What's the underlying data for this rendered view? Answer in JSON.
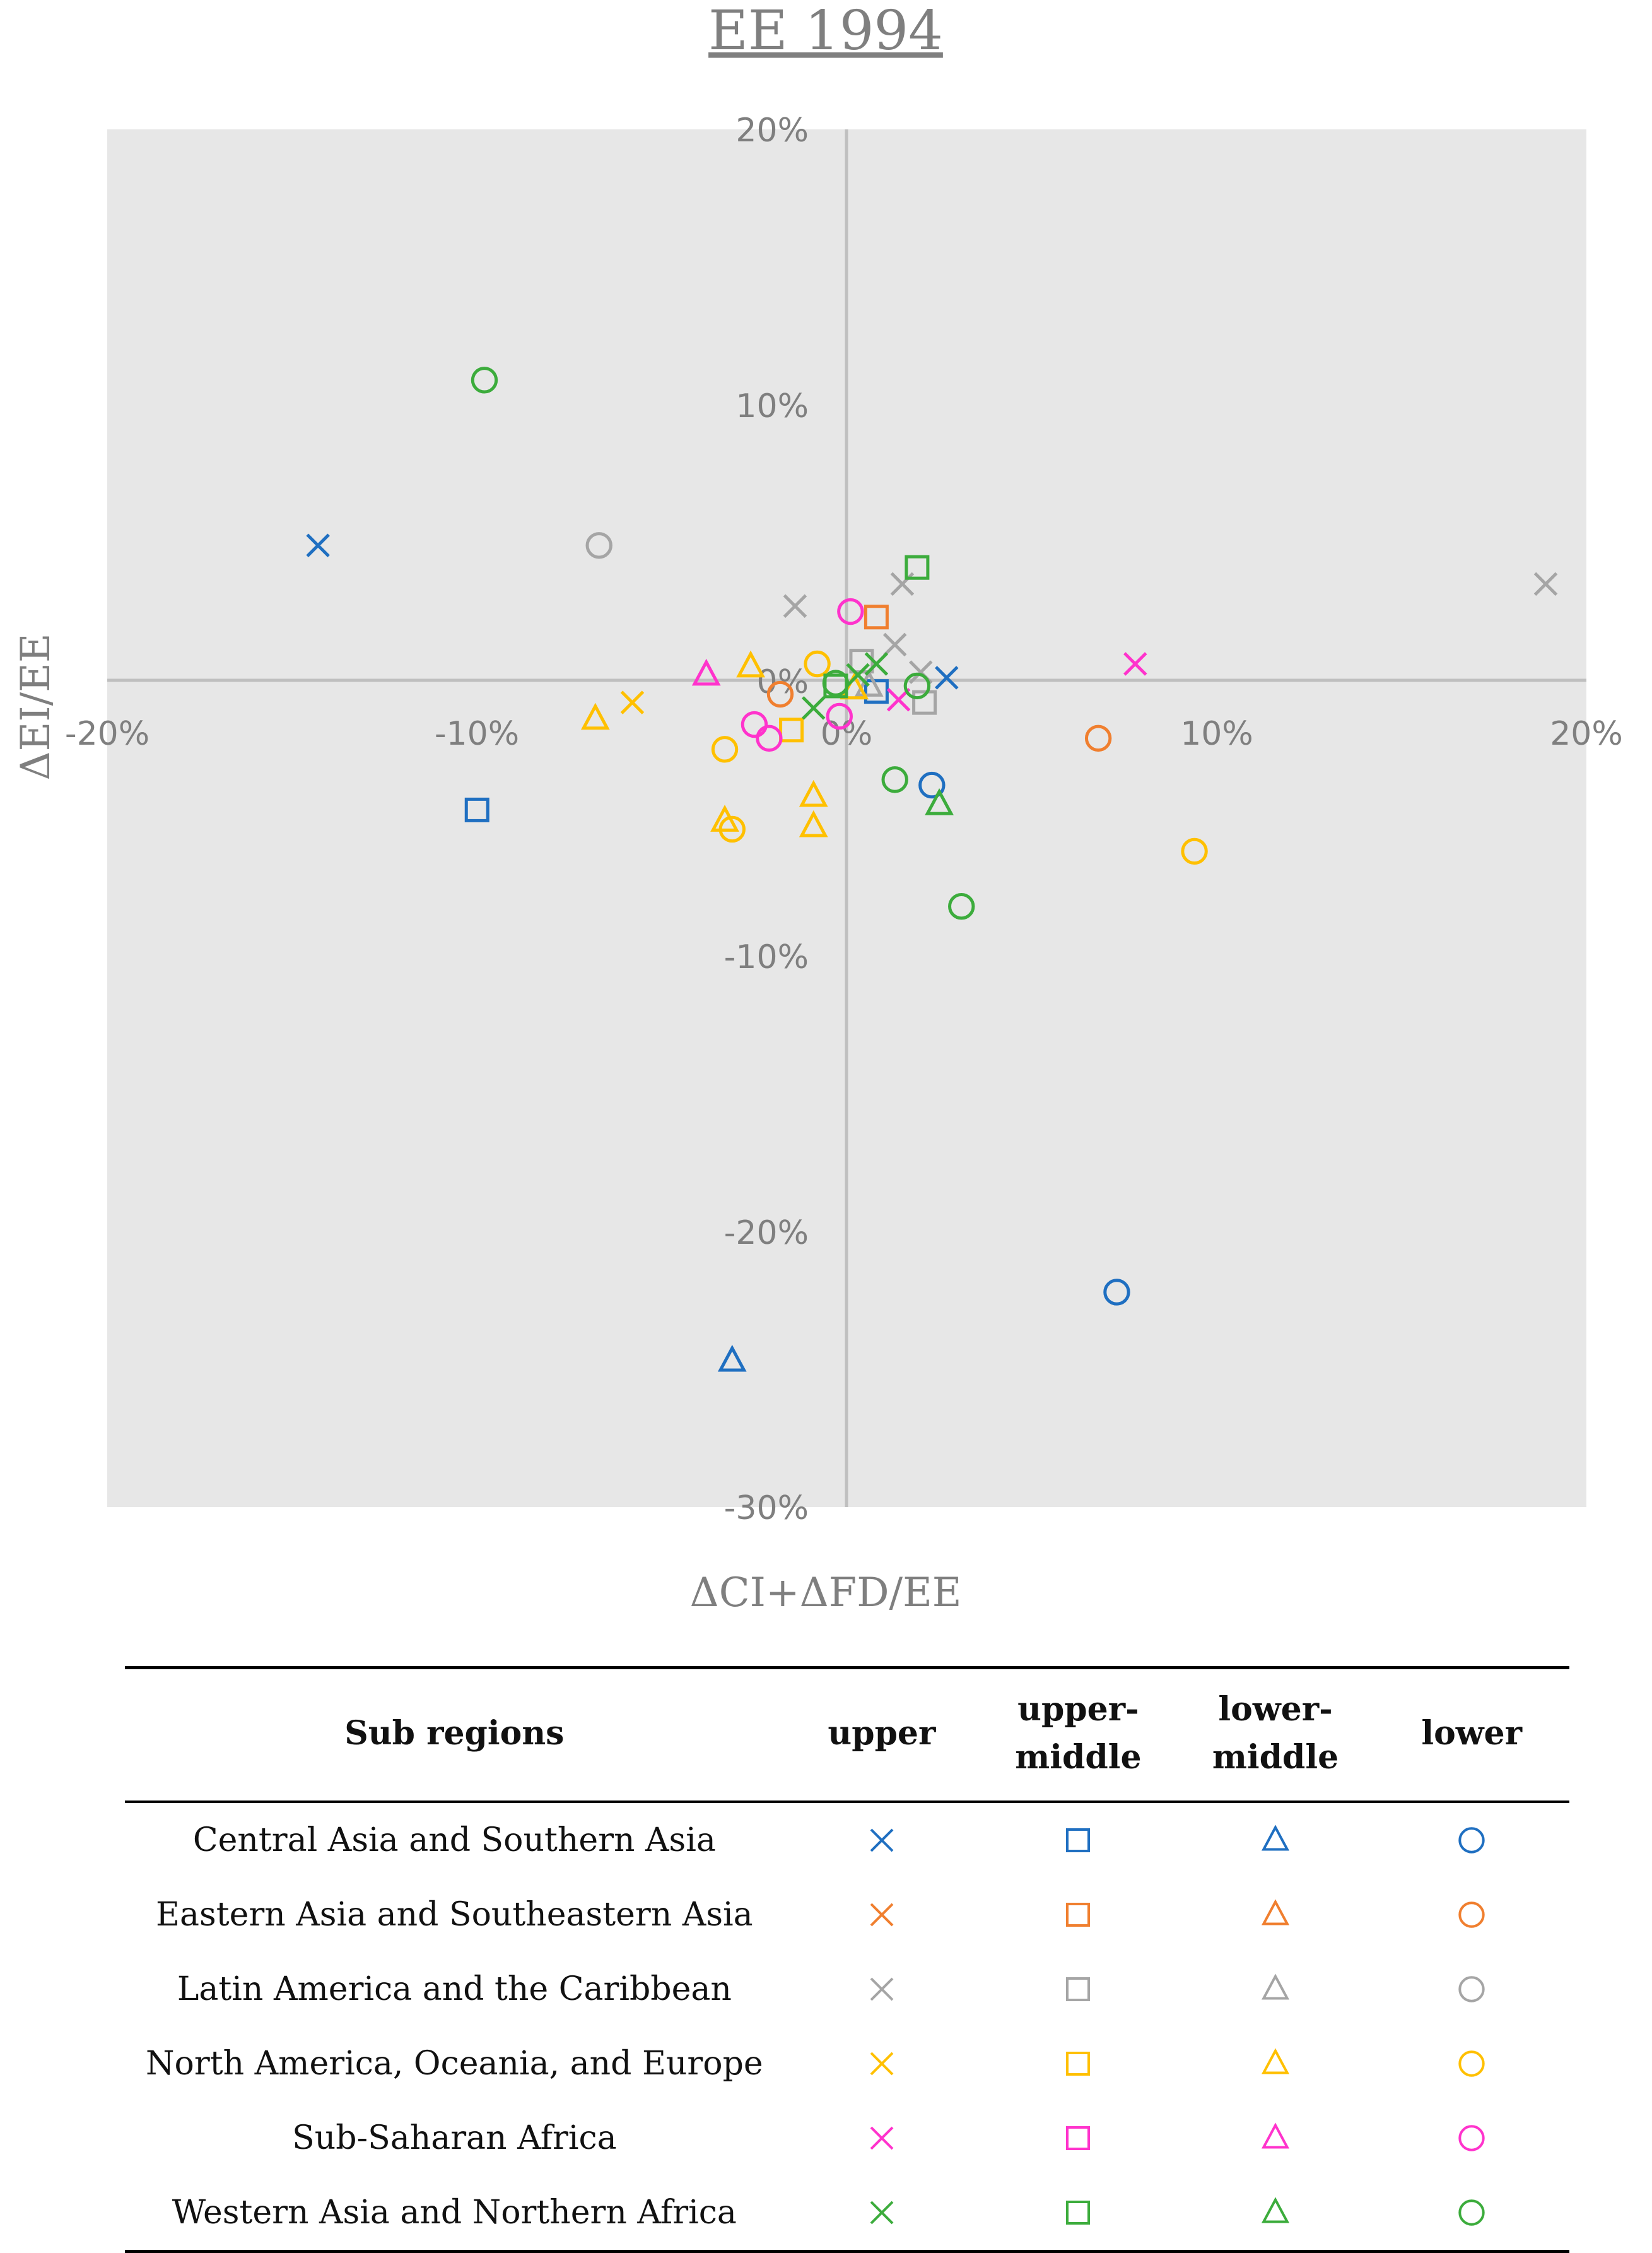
{
  "chart_data": {
    "type": "scatter",
    "title": "EE 1994",
    "xlabel": "ΔCI+ΔFD/EE",
    "ylabel": "ΔEI/EE",
    "xlim": [
      -20,
      20
    ],
    "ylim": [
      -30,
      20
    ],
    "x_ticks": [
      "-20%",
      "-10%",
      "0%",
      "10%",
      "20%"
    ],
    "y_ticks": [
      "20%",
      "10%",
      "0%",
      "-10%",
      "-20%",
      "-30%"
    ],
    "grid": false,
    "marker_types": [
      "upper",
      "upper-middle",
      "lower-middle",
      "lower"
    ],
    "series": [
      {
        "name": "Central Asia and Southern Asia",
        "color": "#1f6fc1",
        "points": [
          {
            "x": -14.3,
            "y": 4.9,
            "m": "upper"
          },
          {
            "x": 2.7,
            "y": 0.1,
            "m": "upper"
          },
          {
            "x": -10.0,
            "y": -4.7,
            "m": "upper-middle"
          },
          {
            "x": 0.8,
            "y": -0.4,
            "m": "upper-middle"
          },
          {
            "x": -3.1,
            "y": -24.7,
            "m": "lower-middle"
          },
          {
            "x": 7.3,
            "y": -22.2,
            "m": "lower"
          },
          {
            "x": 2.3,
            "y": -3.8,
            "m": "lower"
          }
        ]
      },
      {
        "name": "Eastern Asia and Southeastern Asia",
        "color": "#f07f2f",
        "points": [
          {
            "x": 0.8,
            "y": 2.3,
            "m": "upper-middle"
          },
          {
            "x": -1.8,
            "y": -0.5,
            "m": "lower"
          },
          {
            "x": 6.8,
            "y": -2.1,
            "m": "lower"
          }
        ]
      },
      {
        "name": "Latin America and the Caribbean",
        "color": "#a5a5a5",
        "points": [
          {
            "x": 18.9,
            "y": 3.5,
            "m": "upper"
          },
          {
            "x": 1.5,
            "y": 3.5,
            "m": "upper"
          },
          {
            "x": -1.4,
            "y": 2.7,
            "m": "upper"
          },
          {
            "x": 1.3,
            "y": 1.3,
            "m": "upper"
          },
          {
            "x": 2.0,
            "y": 0.3,
            "m": "upper"
          },
          {
            "x": 2.1,
            "y": -0.8,
            "m": "upper-middle"
          },
          {
            "x": 0.4,
            "y": 0.7,
            "m": "upper-middle"
          },
          {
            "x": 0.6,
            "y": -0.2,
            "m": "lower-middle"
          },
          {
            "x": -6.7,
            "y": 4.9,
            "m": "lower"
          }
        ]
      },
      {
        "name": "North America, Oceania, and Europe",
        "color": "#ffc000",
        "points": [
          {
            "x": -5.8,
            "y": -0.8,
            "m": "upper"
          },
          {
            "x": -1.5,
            "y": -1.8,
            "m": "upper-middle"
          },
          {
            "x": -6.8,
            "y": -1.4,
            "m": "lower-middle"
          },
          {
            "x": -2.6,
            "y": 0.5,
            "m": "lower-middle"
          },
          {
            "x": -0.9,
            "y": -4.2,
            "m": "lower-middle"
          },
          {
            "x": -0.9,
            "y": -5.3,
            "m": "lower-middle"
          },
          {
            "x": -3.3,
            "y": -5.1,
            "m": "lower-middle"
          },
          {
            "x": 0.2,
            "y": -0.3,
            "m": "lower-middle"
          },
          {
            "x": -0.8,
            "y": 0.6,
            "m": "lower"
          },
          {
            "x": -3.3,
            "y": -2.5,
            "m": "lower"
          },
          {
            "x": -3.1,
            "y": -5.4,
            "m": "lower"
          },
          {
            "x": 9.4,
            "y": -6.2,
            "m": "lower"
          }
        ]
      },
      {
        "name": "Sub-Saharan Africa",
        "color": "#ff33cc",
        "points": [
          {
            "x": 7.8,
            "y": 0.6,
            "m": "upper"
          },
          {
            "x": 1.4,
            "y": -0.7,
            "m": "upper"
          },
          {
            "x": -3.8,
            "y": 0.2,
            "m": "lower-middle"
          },
          {
            "x": 0.1,
            "y": 2.5,
            "m": "lower"
          },
          {
            "x": -2.5,
            "y": -1.6,
            "m": "lower"
          },
          {
            "x": -2.1,
            "y": -2.1,
            "m": "lower"
          },
          {
            "x": -0.2,
            "y": -1.3,
            "m": "lower"
          }
        ]
      },
      {
        "name": "Western Asia and Northern Africa",
        "color": "#3cac3c",
        "points": [
          {
            "x": 0.8,
            "y": 0.6,
            "m": "upper"
          },
          {
            "x": -0.9,
            "y": -1.0,
            "m": "upper"
          },
          {
            "x": 0.3,
            "y": 0.2,
            "m": "upper"
          },
          {
            "x": 1.9,
            "y": 4.1,
            "m": "upper-middle"
          },
          {
            "x": -0.3,
            "y": -0.2,
            "m": "upper-middle"
          },
          {
            "x": 2.5,
            "y": -4.5,
            "m": "lower-middle"
          },
          {
            "x": -9.8,
            "y": 10.9,
            "m": "lower"
          },
          {
            "x": 1.3,
            "y": -3.6,
            "m": "lower"
          },
          {
            "x": 3.1,
            "y": -8.2,
            "m": "lower"
          },
          {
            "x": 1.9,
            "y": -0.2,
            "m": "lower"
          },
          {
            "x": -0.3,
            "y": -0.1,
            "m": "lower"
          }
        ]
      }
    ]
  },
  "legend": {
    "headers": {
      "region": "Sub regions",
      "upper": "upper",
      "upper_middle": "upper- middle",
      "lower_middle": "lower- middle",
      "lower": "lower"
    },
    "rows": [
      {
        "region": "Central Asia and Southern Asia",
        "color": "#1f6fc1"
      },
      {
        "region": "Eastern Asia and Southeastern Asia",
        "color": "#f07f2f"
      },
      {
        "region": "Latin America and the Caribbean",
        "color": "#a5a5a5"
      },
      {
        "region": "North America, Oceania, and Europe",
        "color": "#ffc000"
      },
      {
        "region": "Sub-Saharan Africa",
        "color": "#ff33cc"
      },
      {
        "region": "Western Asia and Northern Africa",
        "color": "#3cac3c"
      }
    ]
  }
}
